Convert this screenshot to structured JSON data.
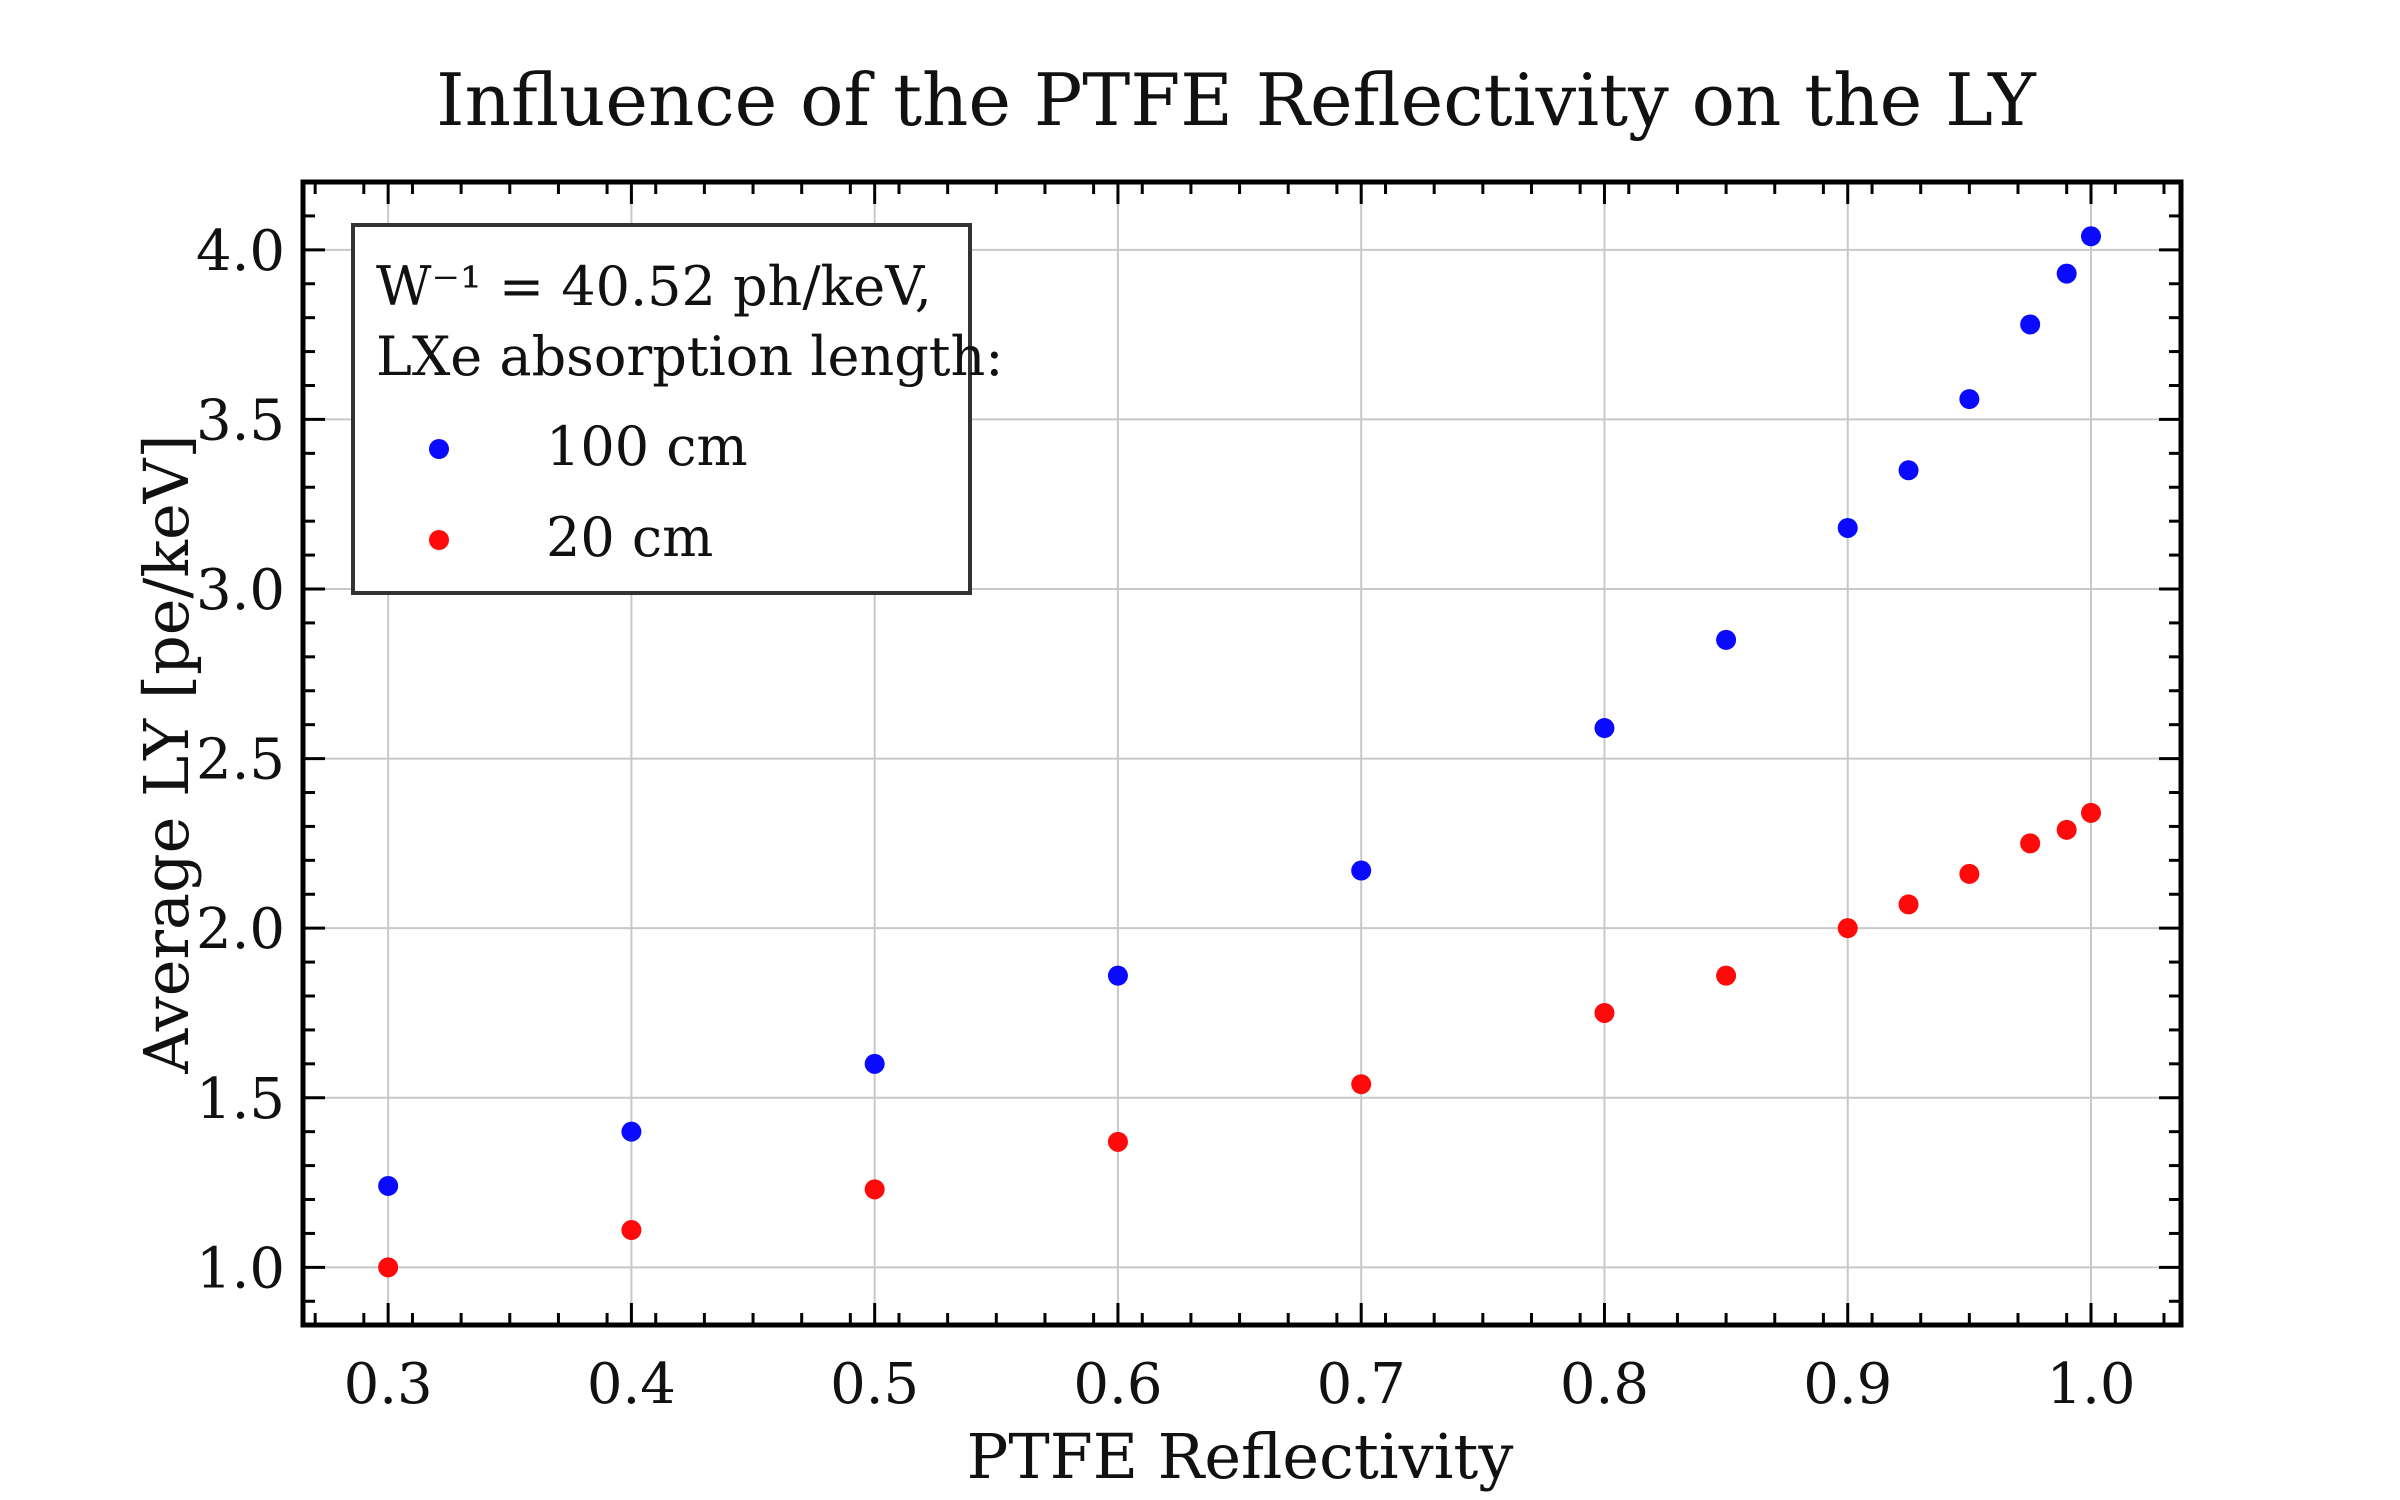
{
  "chart_data": {
    "type": "scatter",
    "title": "Influence of the PTFE Reflectivity on the LY",
    "xlabel": "PTFE Reflectivity",
    "ylabel": "Average LY [pe/keV]",
    "xlim": [
      0.265,
      1.037
    ],
    "ylim": [
      0.83,
      4.2
    ],
    "xticks": [
      "0.3",
      "0.4",
      "0.5",
      "0.6",
      "0.7",
      "0.8",
      "0.9",
      "1.0"
    ],
    "yticks": [
      "1.0",
      "1.5",
      "2.0",
      "2.5",
      "3.0",
      "3.5",
      "4.0"
    ],
    "grid": true,
    "legend": {
      "placement": "top-left",
      "title_line1": "W⁻¹ = 40.52 ph/keV,",
      "title_line2": "LXe absorption length:"
    },
    "x": [
      0.3,
      0.4,
      0.5,
      0.6,
      0.7,
      0.8,
      0.85,
      0.9,
      0.925,
      0.95,
      0.975,
      0.99,
      1.0
    ],
    "series": [
      {
        "name": "100 cm",
        "color": "#0a0aff",
        "values": [
          1.24,
          1.4,
          1.6,
          1.86,
          2.17,
          2.59,
          2.85,
          3.18,
          3.35,
          3.56,
          3.78,
          3.93,
          4.04
        ]
      },
      {
        "name": "20 cm",
        "color": "#ff0a0a",
        "values": [
          1.0,
          1.11,
          1.23,
          1.37,
          1.54,
          1.75,
          1.86,
          2.0,
          2.07,
          2.16,
          2.25,
          2.29,
          2.34
        ]
      }
    ]
  }
}
